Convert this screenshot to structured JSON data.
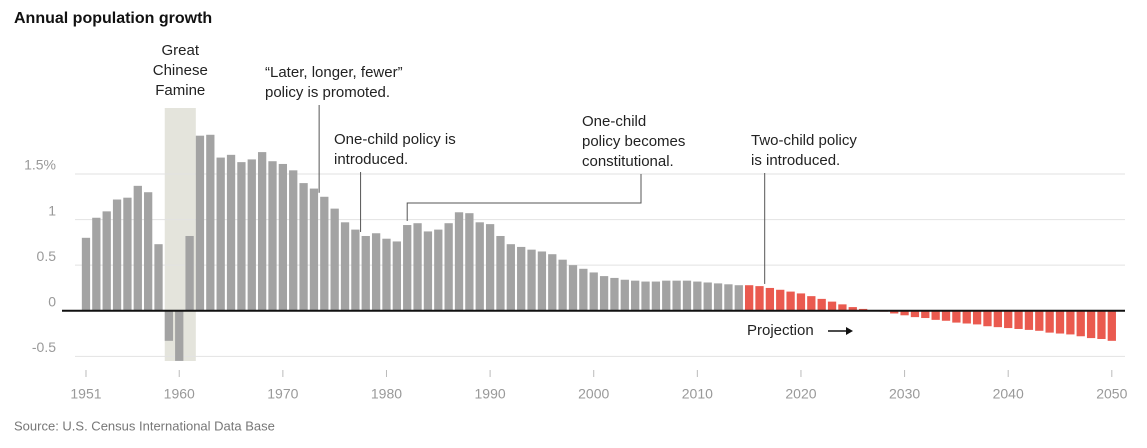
{
  "chart_data": {
    "type": "bar",
    "title": "Annual population growth",
    "source": "Source: U.S. Census International Data Base",
    "x": [
      1951,
      1952,
      1953,
      1954,
      1955,
      1956,
      1957,
      1958,
      1959,
      1960,
      1961,
      1962,
      1963,
      1964,
      1965,
      1966,
      1967,
      1968,
      1969,
      1970,
      1971,
      1972,
      1973,
      1974,
      1975,
      1976,
      1977,
      1978,
      1979,
      1980,
      1981,
      1982,
      1983,
      1984,
      1985,
      1986,
      1987,
      1988,
      1989,
      1990,
      1991,
      1992,
      1993,
      1994,
      1995,
      1996,
      1997,
      1998,
      1999,
      2000,
      2001,
      2002,
      2003,
      2004,
      2005,
      2006,
      2007,
      2008,
      2009,
      2010,
      2011,
      2012,
      2013,
      2014,
      2015,
      2016,
      2017,
      2018,
      2019,
      2020,
      2021,
      2022,
      2023,
      2024,
      2025,
      2026,
      2027,
      2028,
      2029,
      2030,
      2031,
      2032,
      2033,
      2034,
      2035,
      2036,
      2037,
      2038,
      2039,
      2040,
      2041,
      2042,
      2043,
      2044,
      2045,
      2046,
      2047,
      2048,
      2049,
      2050
    ],
    "values": [
      0.8,
      1.02,
      1.09,
      1.22,
      1.24,
      1.37,
      1.3,
      0.73,
      -0.33,
      -0.55,
      0.82,
      1.92,
      1.93,
      1.68,
      1.71,
      1.63,
      1.66,
      1.74,
      1.64,
      1.61,
      1.54,
      1.4,
      1.34,
      1.25,
      1.12,
      0.97,
      0.89,
      0.82,
      0.85,
      0.79,
      0.76,
      0.94,
      0.96,
      0.87,
      0.89,
      0.96,
      1.08,
      1.07,
      0.97,
      0.95,
      0.82,
      0.73,
      0.7,
      0.67,
      0.65,
      0.62,
      0.56,
      0.5,
      0.46,
      0.42,
      0.38,
      0.36,
      0.34,
      0.33,
      0.32,
      0.32,
      0.33,
      0.33,
      0.33,
      0.32,
      0.31,
      0.3,
      0.29,
      0.28,
      0.28,
      0.27,
      0.25,
      0.23,
      0.21,
      0.19,
      0.16,
      0.13,
      0.1,
      0.07,
      0.04,
      0.02,
      0.005,
      -0.01,
      -0.03,
      -0.05,
      -0.07,
      -0.08,
      -0.1,
      -0.11,
      -0.13,
      -0.14,
      -0.15,
      -0.17,
      -0.18,
      -0.19,
      -0.2,
      -0.21,
      -0.22,
      -0.24,
      -0.25,
      -0.26,
      -0.28,
      -0.3,
      -0.31,
      -0.33
    ],
    "color": "#a3a3a3",
    "projection": {
      "label": "Projection",
      "start": 2015,
      "color": "#ea5a4f"
    },
    "xlim": [
      1950.5,
      2050.5
    ],
    "xticks": [
      1951,
      1960,
      1970,
      1980,
      1990,
      2000,
      2010,
      2020,
      2030,
      2040,
      2050
    ],
    "ylim": [
      -0.65,
      2.0
    ],
    "yticks": [
      {
        "value": 1.5,
        "label": "1.5%"
      },
      1,
      0.5,
      0,
      -0.5
    ],
    "grid": true,
    "shade": {
      "lines": [
        "Great",
        "Chinese",
        "Famine"
      ],
      "span": [
        1958.6,
        1961.6
      ],
      "color": "#e4e4dc"
    },
    "annotations": [
      {
        "lines": [
          "“Later, longer, fewer”",
          "policy is promoted."
        ],
        "year": 1974
      },
      {
        "lines": [
          "One-child policy is",
          "introduced."
        ],
        "year": 1978
      },
      {
        "lines": [
          "One-child",
          "policy becomes",
          "constitutional."
        ],
        "year": 1982
      },
      {
        "lines": [
          "Two-child policy",
          "is introduced."
        ],
        "year": 2017
      }
    ]
  }
}
